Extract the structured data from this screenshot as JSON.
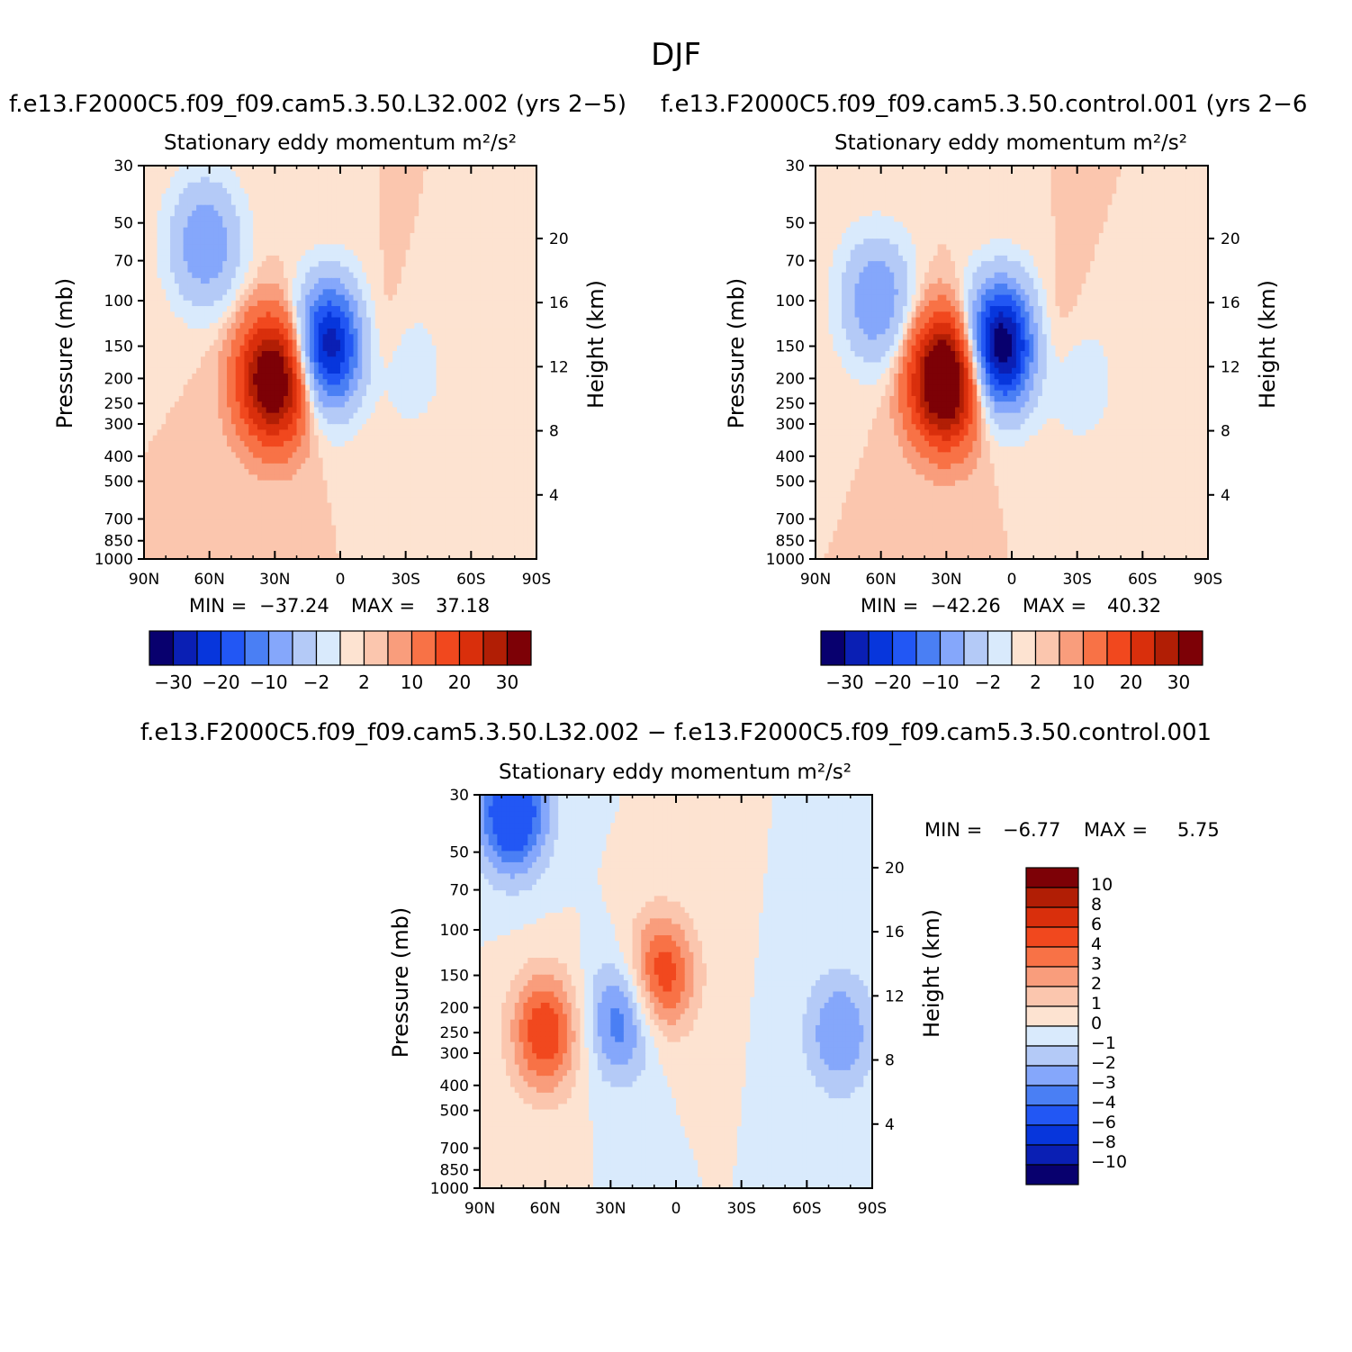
{
  "figure": {
    "main_title": "DJF"
  },
  "colors": {
    "full_levels": [
      "#08006e",
      "#0a1fb4",
      "#0736dc",
      "#2257f4",
      "#4a7ff4",
      "#85a7fb",
      "#b4caf7",
      "#d9eafc",
      "#fde3d1",
      "#fbc6ae",
      "#f99d7c",
      "#f87246",
      "#f1481e",
      "#d92f0c",
      "#b11e05",
      "#7d0106"
    ],
    "diff_levels": [
      "#08006e",
      "#0a1fb4",
      "#0736dc",
      "#2257f4",
      "#4a7ff4",
      "#85a7fb",
      "#b4caf7",
      "#d9eafc",
      "#fde3d1",
      "#fbc6ae",
      "#f99d7c",
      "#f87246",
      "#f1481e",
      "#d92f0c",
      "#b11e05",
      "#7d0106"
    ]
  },
  "panels": [
    {
      "id": "model",
      "case_title": "f.e13.F2000C5.f09_f09.cam5.3.50.L32.002 (yrs 2−5)",
      "subtitle": "Stationary eddy momentum  m²/s²",
      "min_label": "MIN =",
      "min_value": "−37.24",
      "max_label": "MAX =",
      "max_value": "37.18",
      "colorbar_labels": [
        "−30",
        "−20",
        "−10",
        "−2",
        "2",
        "10",
        "20",
        "30"
      ]
    },
    {
      "id": "control",
      "case_title": "f.e13.F2000C5.f09_f09.cam5.3.50.control.001 (yrs 2−6",
      "subtitle": "Stationary eddy momentum  m²/s²",
      "min_label": "MIN =",
      "min_value": "−42.26",
      "max_label": "MAX =",
      "max_value": "40.32",
      "colorbar_labels": [
        "−30",
        "−20",
        "−10",
        "−2",
        "2",
        "10",
        "20",
        "30"
      ]
    },
    {
      "id": "difference",
      "case_title": "f.e13.F2000C5.f09_f09.cam5.3.50.L32.002 − f.e13.F2000C5.f09_f09.cam5.3.50.control.001",
      "subtitle": "Stationary eddy momentum  m²/s²",
      "min_label": "MIN =",
      "min_value": "−6.77",
      "max_label": "MAX =",
      "max_value": "5.75",
      "colorbar_labels": [
        "10",
        "8",
        "6",
        "4",
        "3",
        "2",
        "1",
        "0",
        "−1",
        "−2",
        "−3",
        "−4",
        "−6",
        "−8",
        "−10"
      ]
    }
  ],
  "axes": {
    "ylabel_left": "Pressure (mb)",
    "ylabel_right": "Height (km)",
    "y_ticks_mb": [
      "30",
      "50",
      "70",
      "100",
      "150",
      "200",
      "250",
      "300",
      "400",
      "500",
      "700",
      "850",
      "1000"
    ],
    "y_ticks_km": [
      "20",
      "16",
      "12",
      "8",
      "4"
    ],
    "x_ticks": [
      "90N",
      "60N",
      "30N",
      "0",
      "30S",
      "60S",
      "90S"
    ]
  },
  "chart_data": [
    {
      "type": "heatmap",
      "title": "f.e13.F2000C5.f09_f09.cam5.3.50.L32.002 (yrs 2−5)",
      "subtitle": "Stationary eddy momentum m²/s²",
      "xlabel": "",
      "ylabel": "Pressure (mb)",
      "y2label": "Height (km)",
      "x_categories": [
        "90N",
        "60N",
        "30N",
        "0",
        "30S",
        "60S",
        "90S"
      ],
      "y_log_mb": [
        30,
        1000
      ],
      "contour_levels": [
        -35,
        -30,
        -25,
        -20,
        -15,
        -10,
        -5,
        -2,
        0,
        2,
        5,
        10,
        15,
        20,
        25,
        30,
        35
      ],
      "features": [
        {
          "lat": -62,
          "p": 60,
          "value": -15
        },
        {
          "lat": -30,
          "p": 200,
          "value": 35
        },
        {
          "lat": -5,
          "p": 150,
          "value": -35
        },
        {
          "lat": 15,
          "p": 150,
          "value": 5
        },
        {
          "lat": 30,
          "p": 180,
          "value": -5
        }
      ],
      "min": -37.24,
      "max": 37.18
    },
    {
      "type": "heatmap",
      "title": "f.e13.F2000C5.f09_f09.cam5.3.50.control.001 (yrs 2−6",
      "subtitle": "Stationary eddy momentum m²/s²",
      "xlabel": "",
      "ylabel": "Pressure (mb)",
      "y2label": "Height (km)",
      "x_categories": [
        "90N",
        "60N",
        "30N",
        "0",
        "30S",
        "60S",
        "90S"
      ],
      "y_log_mb": [
        30,
        1000
      ],
      "contour_levels": [
        -35,
        -30,
        -25,
        -20,
        -15,
        -10,
        -5,
        -2,
        0,
        2,
        5,
        10,
        15,
        20,
        25,
        30,
        35
      ],
      "features": [
        {
          "lat": -62,
          "p": 100,
          "value": -15
        },
        {
          "lat": -30,
          "p": 200,
          "value": 40
        },
        {
          "lat": -5,
          "p": 150,
          "value": -42
        },
        {
          "lat": 15,
          "p": 150,
          "value": 5
        },
        {
          "lat": 30,
          "p": 200,
          "value": -5
        }
      ],
      "min": -42.26,
      "max": 40.32
    },
    {
      "type": "heatmap",
      "title": "f.e13.F2000C5.f09_f09.cam5.3.50.L32.002 − f.e13.F2000C5.f09_f09.cam5.3.50.control.001",
      "subtitle": "Stationary eddy momentum m²/s²",
      "xlabel": "",
      "ylabel": "Pressure (mb)",
      "y2label": "Height (km)",
      "x_categories": [
        "90N",
        "60N",
        "30N",
        "0",
        "30S",
        "60S",
        "90S"
      ],
      "y_log_mb": [
        30,
        1000
      ],
      "contour_levels": [
        -10,
        -8,
        -6,
        -4,
        -3,
        -2,
        -1,
        0,
        1,
        2,
        3,
        4,
        6,
        8,
        10
      ],
      "features": [
        {
          "lat": -75,
          "p": 35,
          "value": -6
        },
        {
          "lat": -60,
          "p": 250,
          "value": 5
        },
        {
          "lat": -25,
          "p": 220,
          "value": -4
        },
        {
          "lat": -7,
          "p": 150,
          "value": 5
        },
        {
          "lat": 75,
          "p": 250,
          "value": -3
        }
      ],
      "min": -6.77,
      "max": 5.75
    }
  ]
}
